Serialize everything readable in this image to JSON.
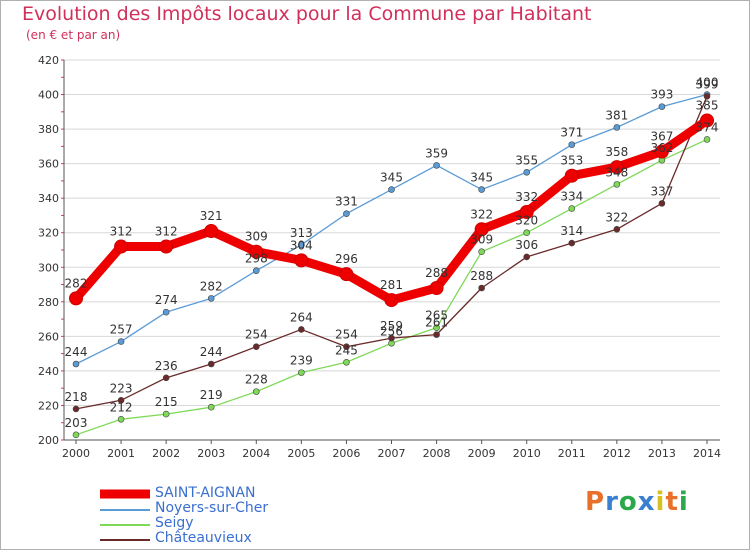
{
  "title": "Evolution des Impôts locaux pour la Commune par Habitant",
  "subtitle": "(en € et par an)",
  "logo": {
    "text": "Proxiti",
    "letters": [
      "P",
      "r",
      "o",
      "x",
      "i",
      "t",
      "i"
    ],
    "colors": [
      "#e8702a",
      "#3a7fd0",
      "#2aa84a",
      "#3a7fd0",
      "#d8c020",
      "#e8702a",
      "#2aa84a"
    ]
  },
  "chart_data": {
    "type": "line",
    "title": "Evolution des Impôts locaux pour la Commune par Habitant",
    "subtitle": "(en € et par an)",
    "xlabel": "",
    "ylabel": "",
    "categories": [
      "2000",
      "2001",
      "2002",
      "2003",
      "2004",
      "2005",
      "2006",
      "2007",
      "2008",
      "2009",
      "2010",
      "2011",
      "2012",
      "2013",
      "2014"
    ],
    "ylim": [
      200,
      420
    ],
    "yticks": [
      200,
      220,
      240,
      260,
      280,
      300,
      320,
      340,
      360,
      380,
      400,
      420
    ],
    "grid": "horizontal",
    "series": [
      {
        "name": "SAINT-AIGNAN",
        "color": "#ee0000",
        "values": [
          282,
          312,
          312,
          321,
          309,
          304,
          296,
          281,
          288,
          322,
          332,
          353,
          358,
          367,
          385
        ]
      },
      {
        "name": "Noyers-sur-Cher",
        "color": "#5b9bd5",
        "values": [
          244,
          257,
          274,
          282,
          298,
          313,
          331,
          345,
          359,
          345,
          355,
          371,
          381,
          393,
          400
        ]
      },
      {
        "name": "Seigy",
        "color": "#7ed957",
        "values": [
          203,
          212,
          215,
          219,
          228,
          239,
          245,
          256,
          265,
          309,
          320,
          334,
          348,
          362,
          374
        ]
      },
      {
        "name": "Châteauvieux",
        "color": "#6b2a2a",
        "values": [
          218,
          223,
          236,
          244,
          254,
          264,
          254,
          259,
          261,
          288,
          306,
          314,
          322,
          337,
          399
        ]
      }
    ],
    "legend_position": "bottom-left"
  }
}
